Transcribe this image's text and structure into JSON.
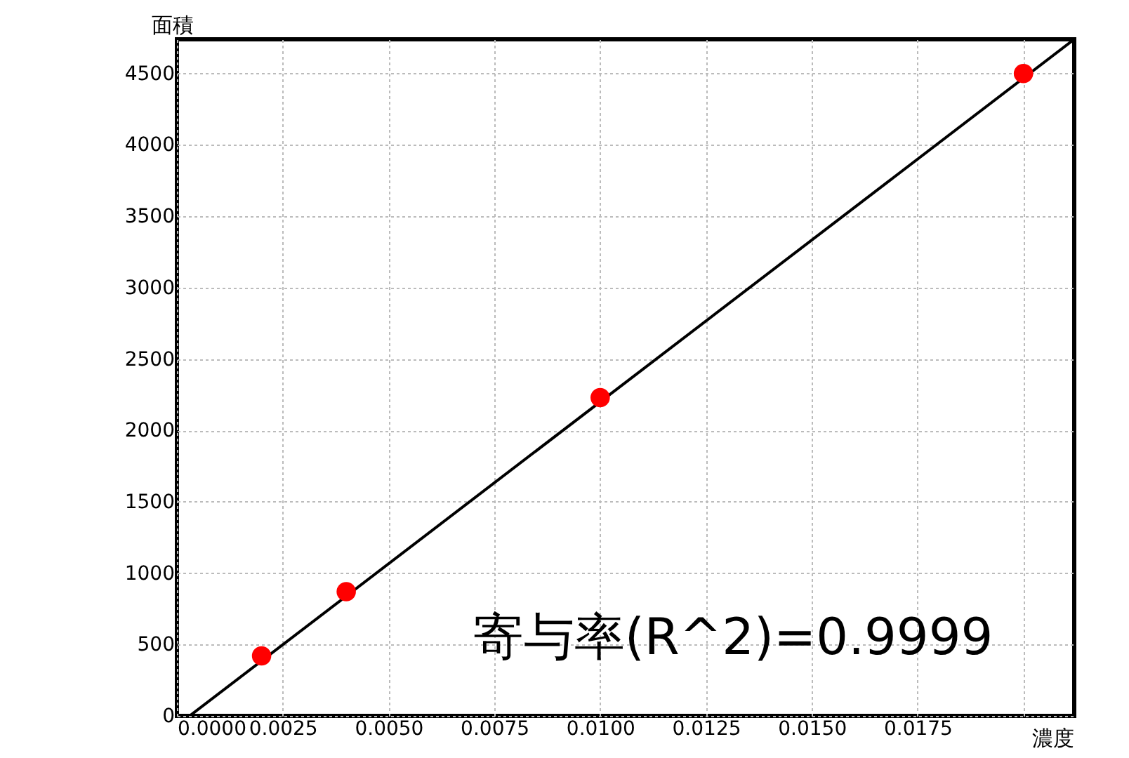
{
  "chart_data": {
    "type": "scatter",
    "xlabel": "濃度",
    "ylabel": "面積",
    "xlim": [
      0,
      0.0212
    ],
    "ylim": [
      0,
      4740
    ],
    "xticks": [
      {
        "value": 0,
        "label": "0.0000"
      },
      {
        "value": 0.0025,
        "label": "0.0025"
      },
      {
        "value": 0.005,
        "label": "0.0050"
      },
      {
        "value": 0.0075,
        "label": "0.0075"
      },
      {
        "value": 0.01,
        "label": "0.0100"
      },
      {
        "value": 0.0125,
        "label": "0.0125"
      },
      {
        "value": 0.015,
        "label": "0.0150"
      },
      {
        "value": 0.0175,
        "label": "0.0175"
      },
      {
        "value": 0.02,
        "label": null
      }
    ],
    "yticks": [
      0,
      500,
      1000,
      1500,
      2000,
      2500,
      3000,
      3500,
      4000,
      4500
    ],
    "grid": true,
    "line_style": "solid",
    "series": [
      {
        "type": "line",
        "marker": "none",
        "color": "#000000",
        "x": [
          0.0003,
          0.0212
        ],
        "values": [
          0,
          4740
        ]
      },
      {
        "marker": "circle",
        "color": "#ff0000",
        "x": [
          0.002,
          0.004,
          0.01,
          0.02
        ],
        "values": [
          420,
          870,
          2230,
          4500
        ]
      }
    ],
    "annotations": [
      "寄与率(R^2)=0.9999"
    ]
  }
}
